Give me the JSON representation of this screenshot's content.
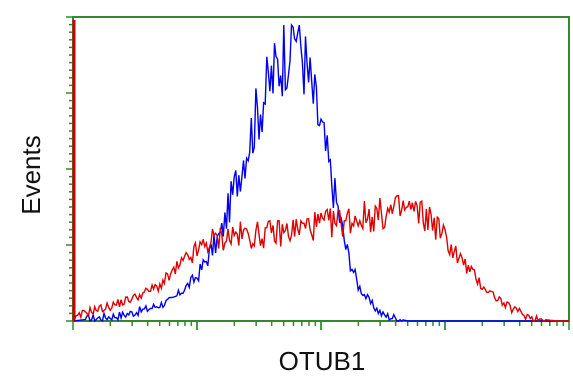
{
  "chart_data": {
    "type": "line",
    "xlabel": "OTUB1",
    "ylabel": "Events",
    "x_scale": "log",
    "xlim": [
      0,
      4
    ],
    "ylim": [
      0,
      100
    ],
    "grid": false,
    "colors": {
      "frame": "#2e8b2e",
      "left_axis_bar": "#cc0000",
      "series_blue": "#0000ee",
      "series_red": "#dd0000"
    },
    "series": [
      {
        "color": "#0000ee",
        "x": [
          0.0,
          0.2,
          0.4,
          0.6,
          0.8,
          1.0,
          1.2,
          1.35,
          1.5,
          1.65,
          1.8,
          1.9,
          2.0,
          2.1,
          2.2,
          2.3,
          2.4,
          2.5,
          2.6,
          2.7,
          2.8,
          3.0
        ],
        "y": [
          0,
          1,
          2,
          4,
          7,
          15,
          30,
          52,
          72,
          86,
          100,
          82,
          65,
          45,
          25,
          12,
          6,
          2,
          1,
          0,
          0,
          0
        ]
      },
      {
        "color": "#dd0000",
        "x": [
          0.0,
          0.1,
          0.3,
          0.5,
          0.7,
          0.9,
          1.1,
          1.3,
          1.5,
          1.7,
          1.9,
          2.1,
          2.3,
          2.5,
          2.7,
          2.9,
          3.1,
          3.3,
          3.5,
          3.7,
          3.9,
          4.0
        ],
        "y": [
          0,
          3,
          5,
          8,
          12,
          20,
          27,
          29,
          29,
          30,
          32,
          33,
          35,
          36,
          38,
          34,
          22,
          12,
          5,
          1,
          0,
          0
        ]
      }
    ]
  }
}
